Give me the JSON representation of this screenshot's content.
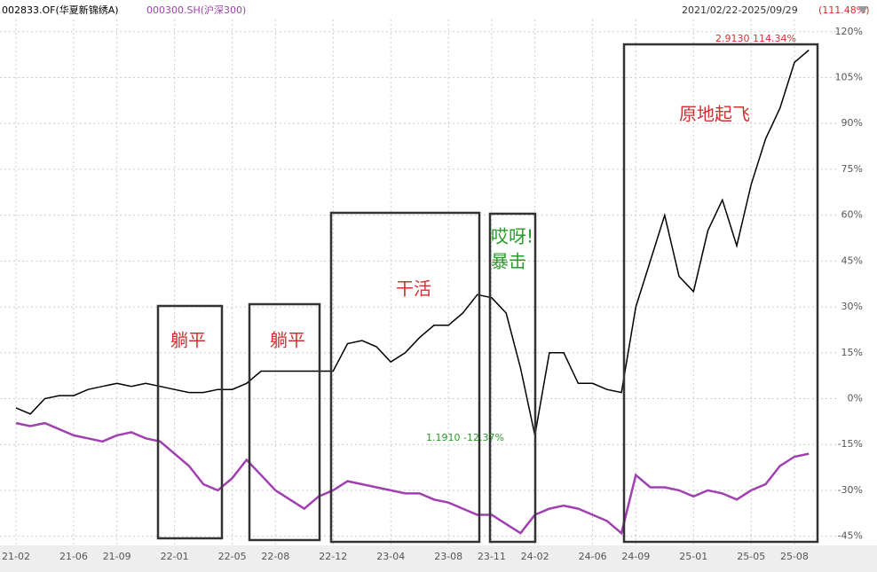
{
  "chart_data": {
    "type": "line",
    "range_label": "2021/02/22-2025/09/29",
    "range_return": "(111.48%)",
    "categories": [
      "21-02",
      null,
      null,
      null,
      "21-06",
      null,
      null,
      "21-09",
      null,
      null,
      null,
      "22-01",
      null,
      null,
      null,
      "22-05",
      null,
      null,
      "22-08",
      null,
      null,
      null,
      "22-12",
      null,
      null,
      null,
      "23-04",
      null,
      null,
      null,
      "23-08",
      null,
      null,
      "23-11",
      null,
      null,
      "24-02",
      null,
      null,
      null,
      "24-06",
      null,
      null,
      "24-09",
      null,
      null,
      null,
      "25-01",
      null,
      null,
      null,
      "25-05",
      null,
      null,
      "25-08",
      null
    ],
    "series": [
      {
        "name": "002833.OF(华夏新锦绣A)",
        "color": "#000000",
        "values": [
          -3,
          -5,
          0,
          1,
          1,
          3,
          4,
          5,
          4,
          5,
          4,
          3,
          2,
          2,
          3,
          3,
          5,
          9,
          9,
          9,
          9,
          9,
          9,
          18,
          19,
          17,
          12,
          15,
          20,
          24,
          24,
          28,
          34,
          33,
          28,
          10,
          -12,
          15,
          15,
          5,
          5,
          3,
          2,
          30,
          45,
          60,
          40,
          35,
          55,
          65,
          50,
          70,
          85,
          95,
          110,
          114
        ]
      },
      {
        "name": "000300.SH(沪深300)",
        "color": "#a040b0",
        "values": [
          -8,
          -9,
          -8,
          -10,
          -12,
          -13,
          -14,
          -12,
          -11,
          -13,
          -14,
          -18,
          -22,
          -28,
          -30,
          -26,
          -20,
          -25,
          -30,
          -33,
          -36,
          -32,
          -30,
          -27,
          -28,
          -29,
          -30,
          -31,
          -31,
          -33,
          -34,
          -36,
          -38,
          -38,
          -41,
          -44,
          -38,
          -36,
          -35,
          -36,
          -38,
          -40,
          -44,
          -25,
          -29,
          -29,
          -30,
          -32,
          -30,
          -31,
          -33,
          -30,
          -28,
          -22,
          -19,
          -18
        ]
      }
    ],
    "ylim": [
      -48,
      124
    ],
    "yticks": [
      {
        "value": -45,
        "label": "-45%"
      },
      {
        "value": -30,
        "label": "-30%"
      },
      {
        "value": -15,
        "label": "-15%"
      },
      {
        "value": 0,
        "label": "0%"
      },
      {
        "value": 15,
        "label": "15%"
      },
      {
        "value": 30,
        "label": "30%"
      },
      {
        "value": 45,
        "label": "45%"
      },
      {
        "value": 60,
        "label": "60%"
      },
      {
        "value": 75,
        "label": "75%"
      },
      {
        "value": 90,
        "label": "90%"
      },
      {
        "value": 105,
        "label": "105%"
      },
      {
        "value": 120,
        "label": "120%"
      }
    ],
    "grid": true,
    "annotations": {
      "max_label": "2.9130 114.34%",
      "min_label": "1.1910 -12.37%",
      "box1": "躺平",
      "box2": "躺平",
      "box3": "干活",
      "box4_line1": "哎呀!",
      "box4_line2": "暴击",
      "box5": "原地起飞"
    }
  }
}
